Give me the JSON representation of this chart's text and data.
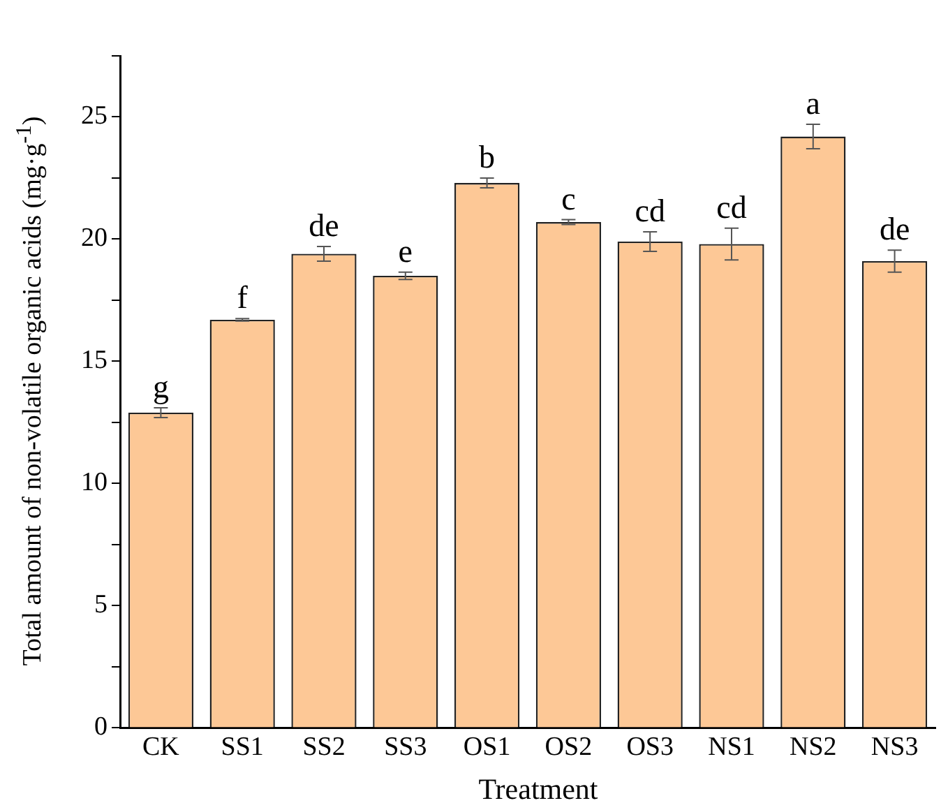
{
  "chart_data": {
    "type": "bar",
    "xlabel": "Treatment",
    "ylabel": "Total amount of non-volatile organic acids (mg·g$^{-1}$)",
    "categories": [
      "CK",
      "SS1",
      "SS2",
      "SS3",
      "OS1",
      "OS2",
      "OS3",
      "NS1",
      "NS2",
      "NS3"
    ],
    "values": [
      12.9,
      16.7,
      19.4,
      18.5,
      22.3,
      20.7,
      19.9,
      19.8,
      24.2,
      19.1
    ],
    "errors": [
      0.2,
      0.05,
      0.3,
      0.15,
      0.2,
      0.1,
      0.4,
      0.65,
      0.5,
      0.45
    ],
    "color": "#fdc896",
    "ylim": [
      0,
      27.5
    ],
    "yticks": [
      0,
      {
        "value": 2.5,
        "label": null
      },
      5,
      {
        "value": 7.5,
        "label": null
      },
      10,
      {
        "value": 12.5,
        "label": null
      },
      15,
      {
        "value": 17.5,
        "label": null
      },
      20,
      {
        "value": 22.5,
        "label": null
      },
      25,
      {
        "value": 27.5,
        "label": null
      }
    ],
    "grid": false,
    "annotations": [
      {
        "text": "g",
        "x": "CK",
        "y": 13.1
      },
      {
        "text": "f",
        "x": "SS1",
        "y": 16.75
      },
      {
        "text": "de",
        "x": "SS2",
        "y": 19.7
      },
      {
        "text": "e",
        "x": "SS3",
        "y": 18.65
      },
      {
        "text": "b",
        "x": "OS1",
        "y": 22.5
      },
      {
        "text": "c",
        "x": "OS2",
        "y": 20.8
      },
      {
        "text": "cd",
        "x": "OS3",
        "y": 20.3
      },
      {
        "text": "cd",
        "x": "NS1",
        "y": 20.45
      },
      {
        "text": "a",
        "x": "NS2",
        "y": 24.7
      },
      {
        "text": "de",
        "x": "NS3",
        "y": 19.55
      }
    ]
  }
}
